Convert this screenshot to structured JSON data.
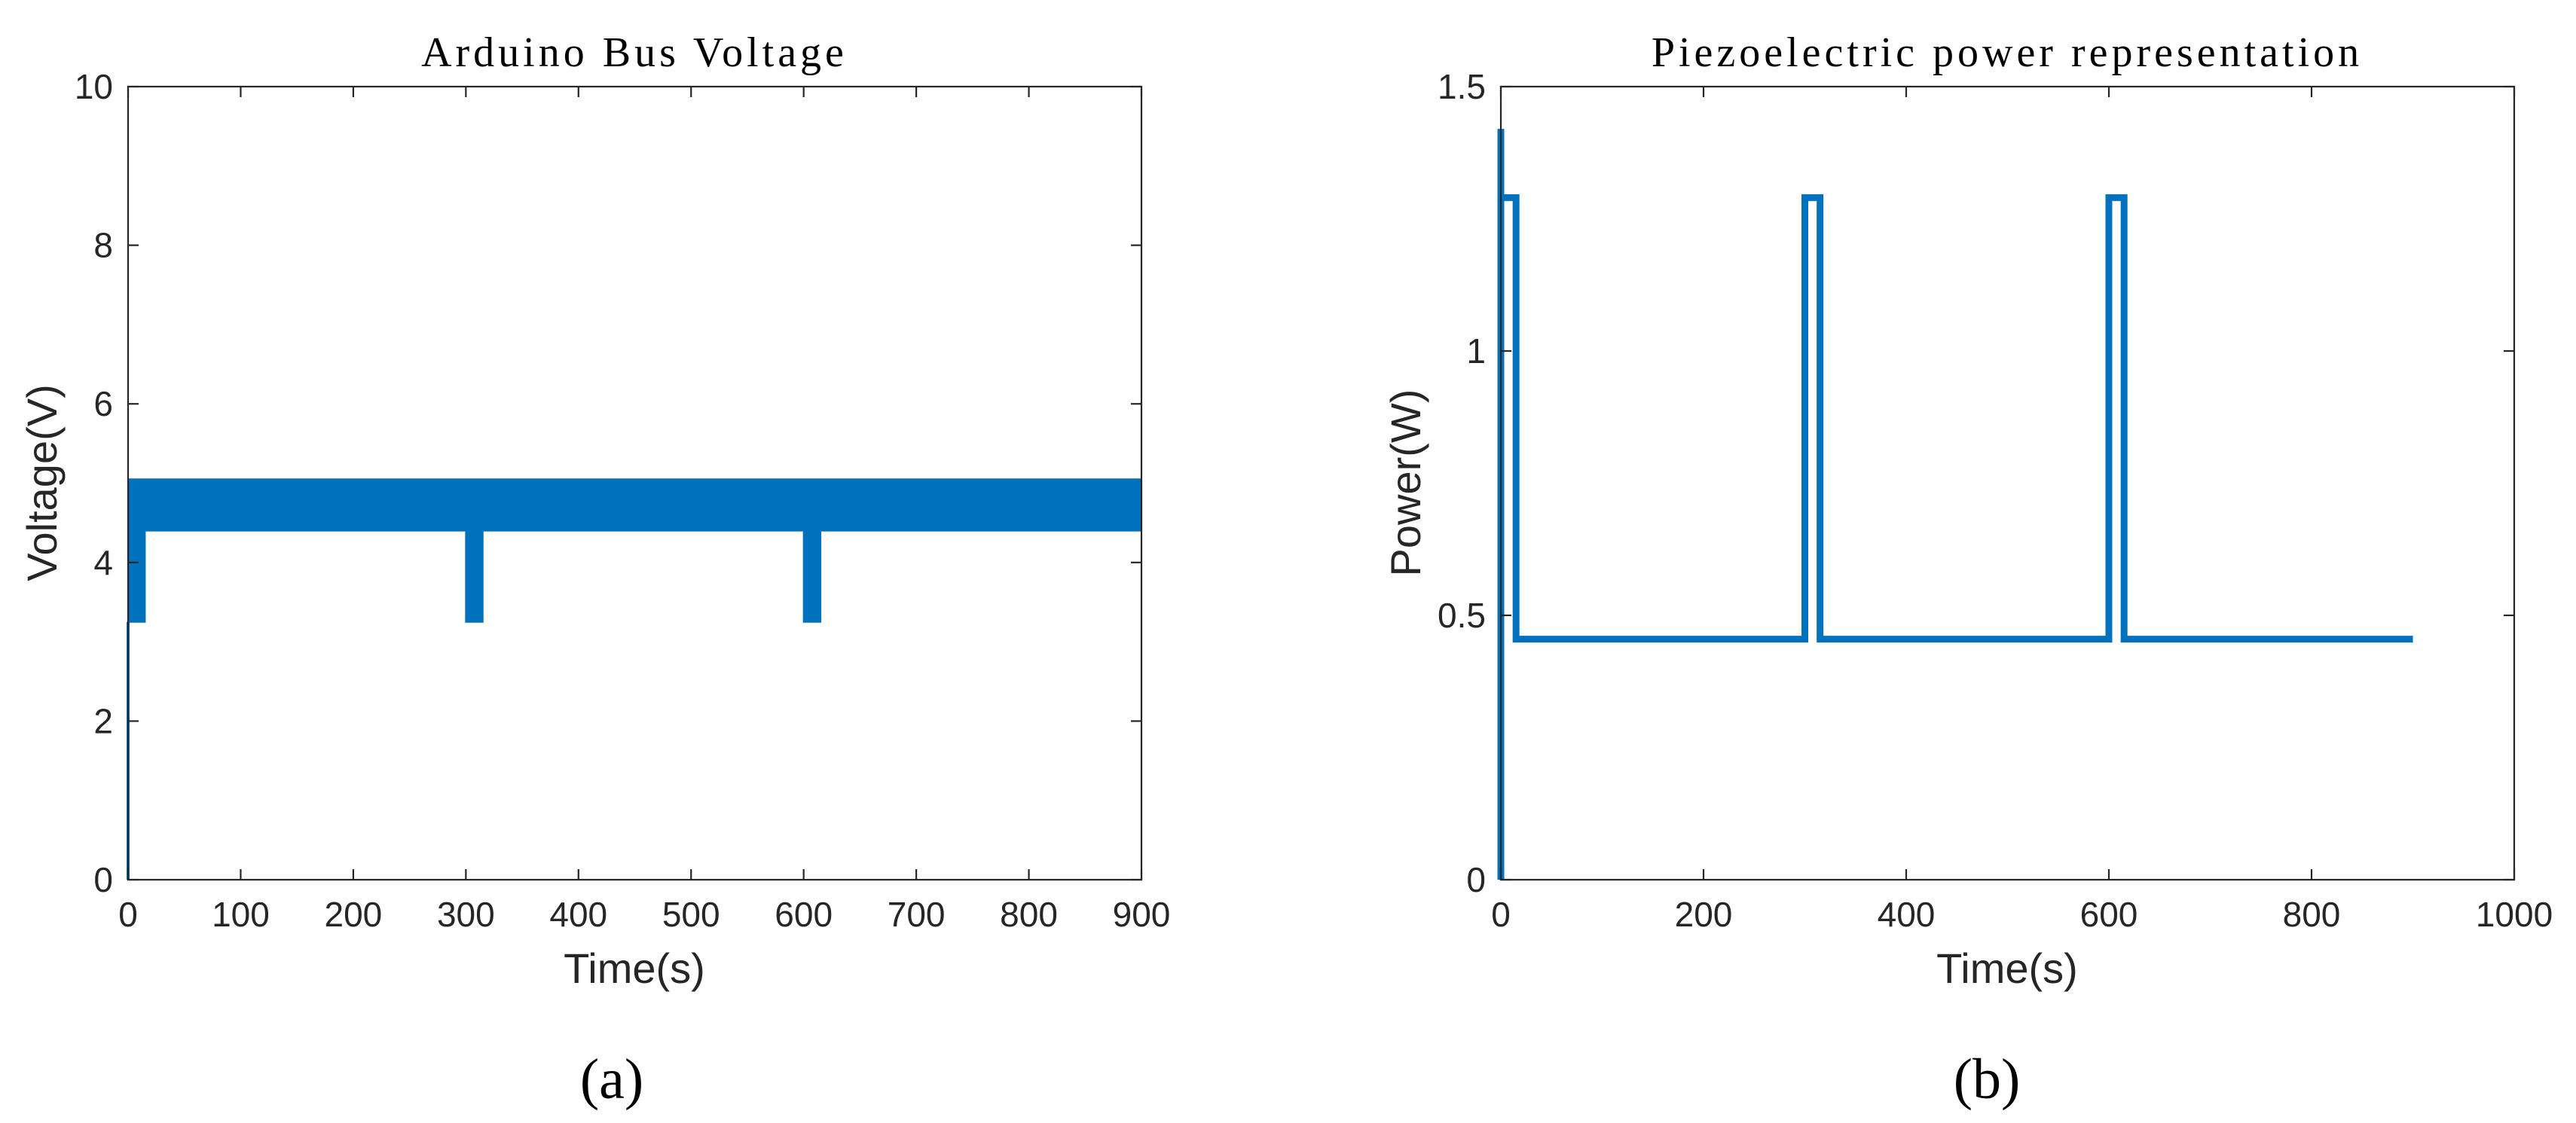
{
  "chart_data": [
    {
      "type": "line",
      "panel_label": "(a)",
      "title": "Arduino Bus Voltage",
      "xlabel": "Time(s)",
      "ylabel": "Voltage(V)",
      "xlim": [
        0,
        900
      ],
      "ylim": [
        0,
        10
      ],
      "xticks": [
        0,
        100,
        200,
        300,
        400,
        500,
        600,
        700,
        800,
        900
      ],
      "yticks": [
        0,
        2,
        4,
        6,
        8,
        10
      ],
      "grid": false,
      "color": "#0072BD",
      "series": [
        {
          "style": "band",
          "x": [
            0,
            15,
            15,
            300,
            300,
            315,
            315,
            600,
            600,
            615,
            615,
            900
          ],
          "y_low": [
            3.25,
            3.25,
            4.4,
            4.4,
            3.25,
            3.25,
            4.4,
            4.4,
            3.25,
            3.25,
            4.4,
            4.4
          ],
          "y_high": [
            5.05,
            5.05,
            5.05,
            5.05,
            5.05,
            5.05,
            5.05,
            5.05,
            5.05,
            5.05,
            5.05,
            5.05
          ]
        },
        {
          "style": "line",
          "x": [
            0,
            0
          ],
          "y": [
            0,
            3.25
          ]
        }
      ]
    },
    {
      "type": "line",
      "panel_label": "(b)",
      "title": "Piezoelectric power representation",
      "xlabel": "Time(s)",
      "ylabel": "Power(W)",
      "xlim": [
        0,
        1000
      ],
      "ylim": [
        0,
        1.5
      ],
      "xticks": [
        0,
        200,
        400,
        600,
        800,
        1000
      ],
      "yticks": [
        0,
        0.5,
        1,
        1.5
      ],
      "ytick_labels": [
        "0",
        "0.5",
        "1",
        "1.5"
      ],
      "grid": false,
      "color": "#0072BD",
      "series": [
        {
          "style": "line",
          "x": [
            0,
            0,
            0,
            0,
            15,
            15,
            300,
            300,
            315,
            315,
            600,
            600,
            615,
            615,
            900
          ],
          "y": [
            0,
            1.42,
            1.29,
            1.29,
            1.29,
            0.455,
            0.455,
            1.29,
            1.29,
            0.455,
            0.455,
            1.29,
            1.29,
            0.455,
            0.455
          ]
        }
      ]
    }
  ]
}
